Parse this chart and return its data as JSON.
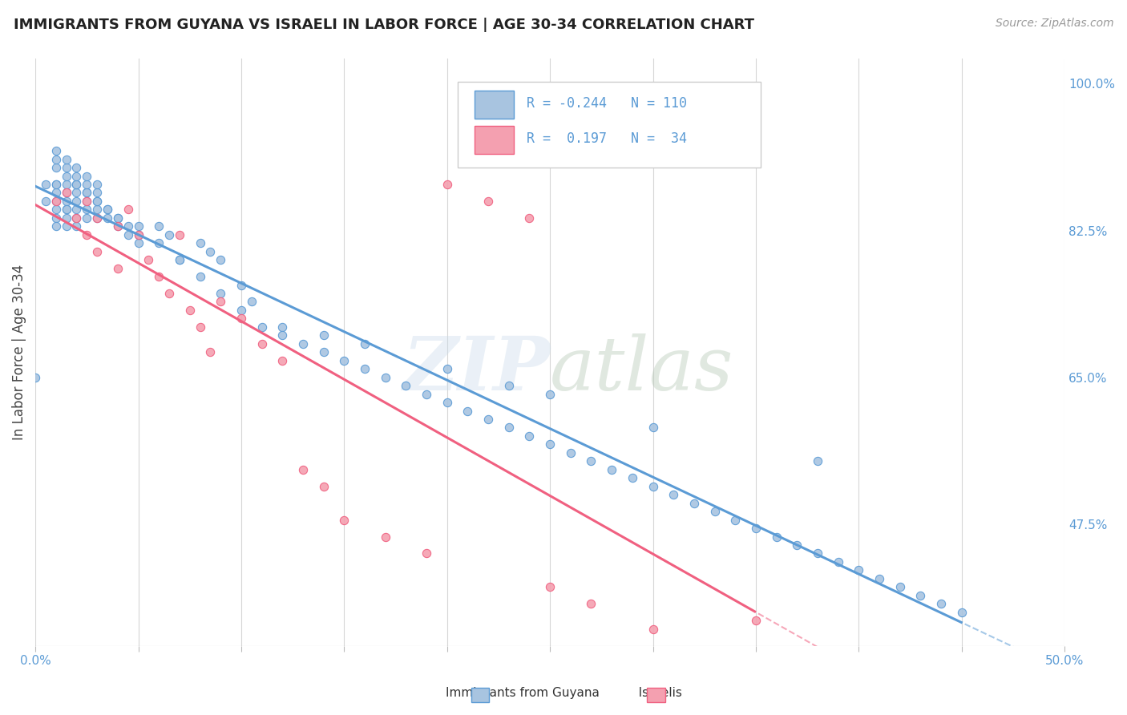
{
  "title": "IMMIGRANTS FROM GUYANA VS ISRAELI IN LABOR FORCE | AGE 30-34 CORRELATION CHART",
  "source": "Source: ZipAtlas.com",
  "ylabel": "In Labor Force | Age 30-34",
  "xlim": [
    0.0,
    0.5
  ],
  "ylim": [
    0.33,
    1.03
  ],
  "right_yticks": [
    0.475,
    0.65,
    0.825,
    1.0
  ],
  "right_yticklabels": [
    "47.5%",
    "65.0%",
    "82.5%",
    "100.0%"
  ],
  "legend_r_blue": "-0.244",
  "legend_n_blue": "110",
  "legend_r_pink": "0.197",
  "legend_n_pink": "34",
  "blue_face_color": "#a8c4e0",
  "pink_face_color": "#f4a0b0",
  "blue_edge_color": "#5b9bd5",
  "pink_edge_color": "#f06080",
  "blue_line_color": "#5b9bd5",
  "pink_line_color": "#f06080",
  "blue_scatter_x": [
    0.0,
    0.005,
    0.005,
    0.01,
    0.01,
    0.01,
    0.01,
    0.01,
    0.01,
    0.01,
    0.015,
    0.015,
    0.015,
    0.015,
    0.015,
    0.015,
    0.015,
    0.02,
    0.02,
    0.02,
    0.02,
    0.02,
    0.02,
    0.025,
    0.025,
    0.025,
    0.025,
    0.03,
    0.03,
    0.03,
    0.035,
    0.035,
    0.04,
    0.04,
    0.045,
    0.05,
    0.05,
    0.06,
    0.065,
    0.07,
    0.08,
    0.085,
    0.09,
    0.1,
    0.105,
    0.12,
    0.14,
    0.16,
    0.2,
    0.23,
    0.25,
    0.3,
    0.38,
    0.01,
    0.01,
    0.015,
    0.015,
    0.02,
    0.02,
    0.025,
    0.025,
    0.03,
    0.03,
    0.035,
    0.04,
    0.045,
    0.05,
    0.06,
    0.07,
    0.08,
    0.09,
    0.1,
    0.11,
    0.12,
    0.13,
    0.14,
    0.15,
    0.16,
    0.17,
    0.18,
    0.19,
    0.2,
    0.21,
    0.22,
    0.23,
    0.24,
    0.25,
    0.26,
    0.27,
    0.28,
    0.29,
    0.3,
    0.31,
    0.32,
    0.33,
    0.34,
    0.35,
    0.36,
    0.37,
    0.38,
    0.39,
    0.4,
    0.41,
    0.42,
    0.43,
    0.44,
    0.45,
    0.01,
    0.015,
    0.02,
    0.025,
    0.03
  ],
  "blue_scatter_y": [
    0.65,
    0.86,
    0.88,
    0.88,
    0.86,
    0.85,
    0.84,
    0.83,
    0.87,
    0.88,
    0.83,
    0.84,
    0.85,
    0.86,
    0.87,
    0.88,
    0.85,
    0.84,
    0.85,
    0.86,
    0.83,
    0.87,
    0.88,
    0.84,
    0.86,
    0.87,
    0.85,
    0.84,
    0.85,
    0.86,
    0.84,
    0.85,
    0.84,
    0.83,
    0.82,
    0.83,
    0.81,
    0.83,
    0.82,
    0.79,
    0.81,
    0.8,
    0.79,
    0.76,
    0.74,
    0.71,
    0.7,
    0.69,
    0.66,
    0.64,
    0.63,
    0.59,
    0.55,
    0.9,
    0.91,
    0.89,
    0.9,
    0.88,
    0.89,
    0.87,
    0.88,
    0.86,
    0.87,
    0.85,
    0.84,
    0.83,
    0.82,
    0.81,
    0.79,
    0.77,
    0.75,
    0.73,
    0.71,
    0.7,
    0.69,
    0.68,
    0.67,
    0.66,
    0.65,
    0.64,
    0.63,
    0.62,
    0.61,
    0.6,
    0.59,
    0.58,
    0.57,
    0.56,
    0.55,
    0.54,
    0.53,
    0.52,
    0.51,
    0.5,
    0.49,
    0.48,
    0.47,
    0.46,
    0.45,
    0.44,
    0.43,
    0.42,
    0.41,
    0.4,
    0.39,
    0.38,
    0.37,
    0.92,
    0.91,
    0.9,
    0.89,
    0.88
  ],
  "pink_scatter_x": [
    0.01,
    0.015,
    0.02,
    0.025,
    0.03,
    0.04,
    0.045,
    0.055,
    0.065,
    0.075,
    0.085,
    0.1,
    0.12,
    0.14,
    0.17,
    0.2,
    0.24,
    0.27,
    0.35,
    0.025,
    0.03,
    0.04,
    0.05,
    0.06,
    0.07,
    0.09,
    0.11,
    0.13,
    0.15,
    0.19,
    0.22,
    0.25,
    0.3,
    0.08
  ],
  "pink_scatter_y": [
    0.86,
    0.87,
    0.84,
    0.86,
    0.84,
    0.83,
    0.85,
    0.79,
    0.75,
    0.73,
    0.68,
    0.72,
    0.67,
    0.52,
    0.46,
    0.88,
    0.84,
    0.38,
    0.36,
    0.82,
    0.8,
    0.78,
    0.82,
    0.77,
    0.82,
    0.74,
    0.69,
    0.54,
    0.48,
    0.44,
    0.86,
    0.4,
    0.35,
    0.71
  ]
}
